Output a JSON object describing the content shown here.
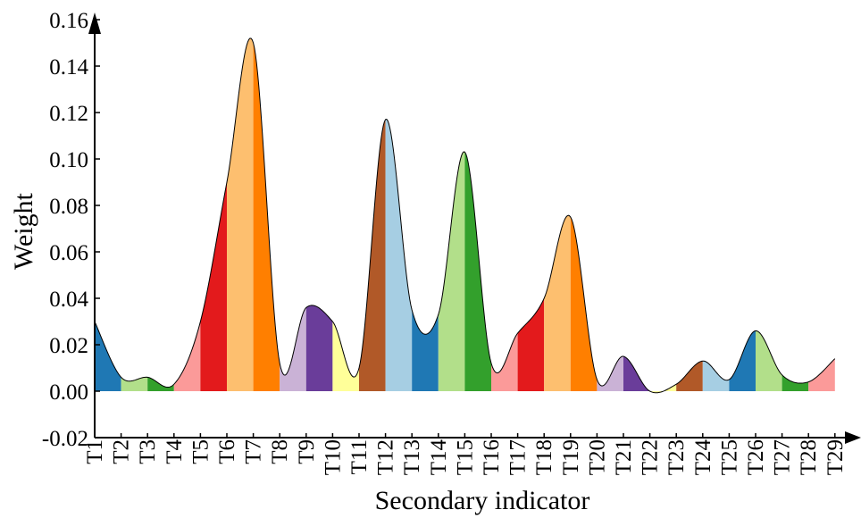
{
  "chart_data": {
    "type": "area",
    "xlabel": "Secondary indicator",
    "ylabel": "Weight",
    "ylim": [
      -0.02,
      0.16
    ],
    "yticks": [
      "-0.02",
      "0.00",
      "0.02",
      "0.04",
      "0.06",
      "0.08",
      "0.10",
      "0.12",
      "0.14",
      "0.16"
    ],
    "categories": [
      "T1",
      "T2",
      "T3",
      "T4",
      "T5",
      "T6",
      "T7",
      "T8",
      "T9",
      "T10",
      "T11",
      "T12",
      "T13",
      "T14",
      "T15",
      "T16",
      "T17",
      "T18",
      "T19",
      "T20",
      "T21",
      "T22",
      "T23",
      "T24",
      "T25",
      "T26",
      "T27",
      "T28",
      "T29"
    ],
    "values": [
      0.03,
      0.006,
      0.006,
      0.003,
      0.03,
      0.09,
      0.15,
      0.012,
      0.036,
      0.03,
      0.01,
      0.117,
      0.035,
      0.033,
      0.103,
      0.012,
      0.025,
      0.04,
      0.075,
      0.005,
      0.015,
      0.0,
      0.003,
      0.013,
      0.005,
      0.026,
      0.007,
      0.004,
      0.014
    ],
    "grid": false,
    "legend": "none",
    "colors": [
      "#1f78b4",
      "#b2df8a",
      "#33a02c",
      "#fb9a99",
      "#e31a1c",
      "#fdbf6f",
      "#ff7f00",
      "#cab2d6",
      "#6a3d9a",
      "#ffff99",
      "#b15928",
      "#a6cee3"
    ],
    "outline_color": "#000000"
  }
}
